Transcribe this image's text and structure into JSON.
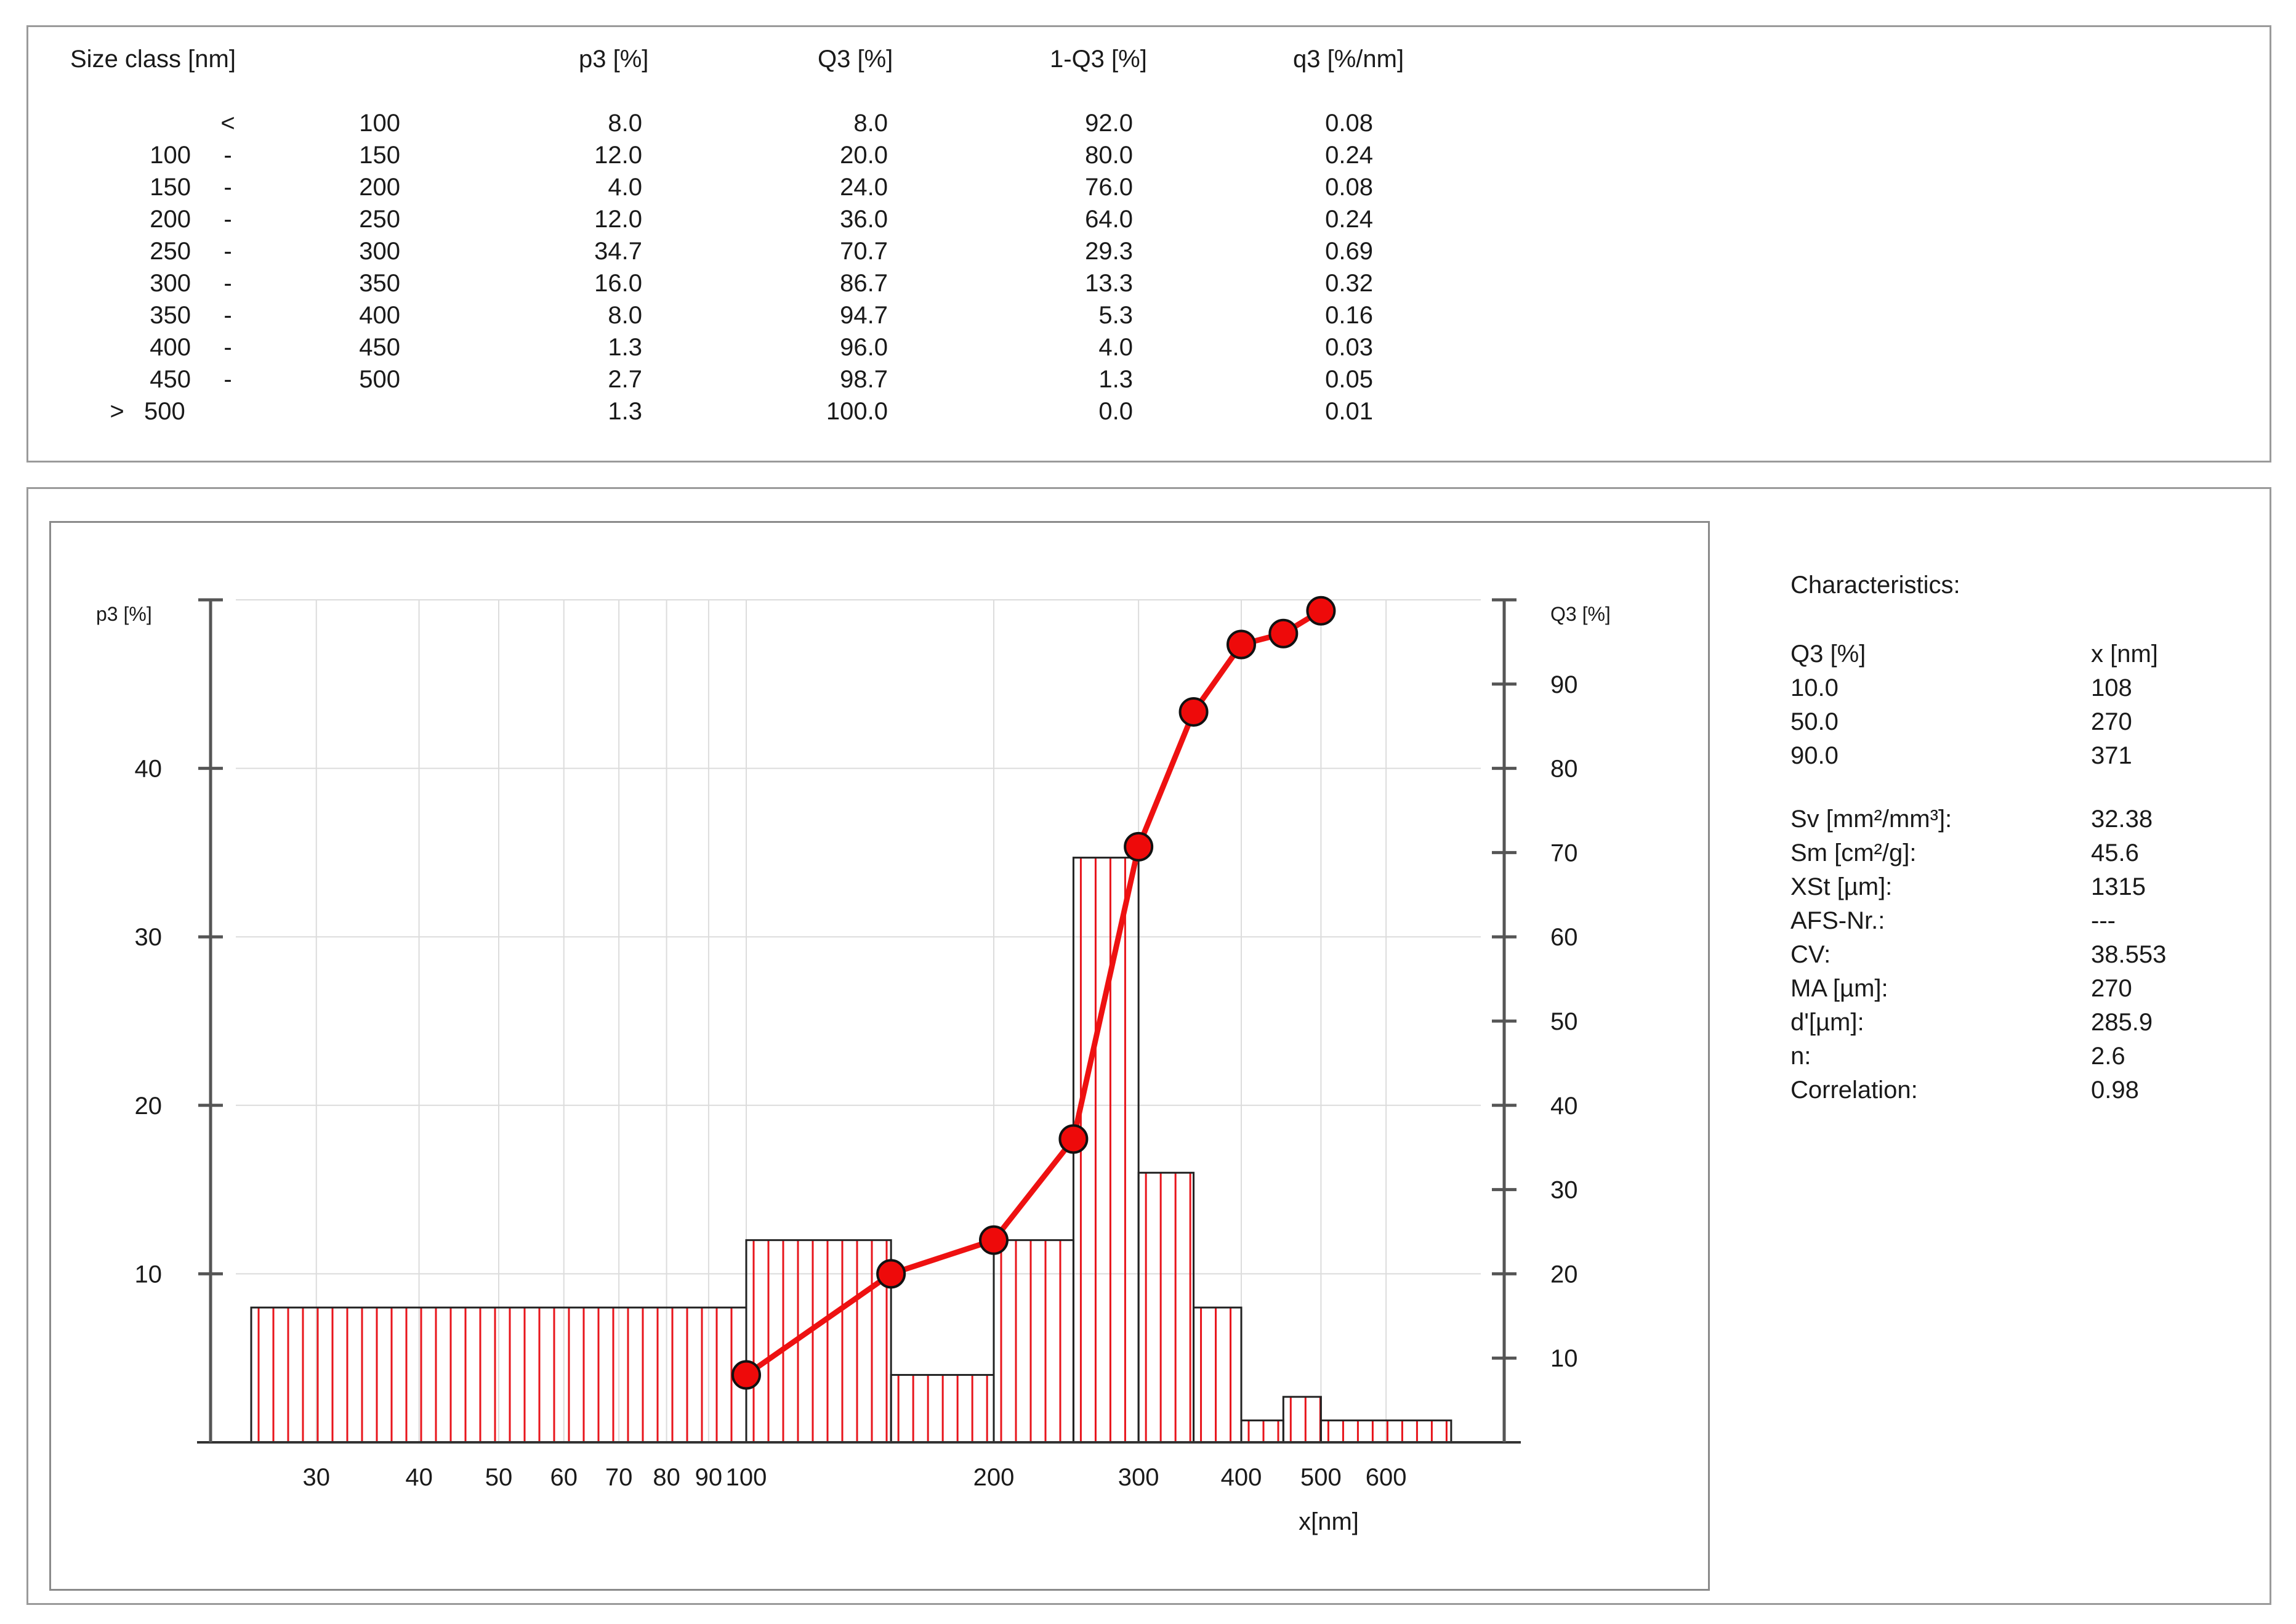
{
  "table": {
    "headers": [
      "Size class [nm]",
      "p3 [%]",
      "Q3 [%]",
      "1-Q3 [%]",
      "q3 [%/nm]"
    ],
    "rows": [
      {
        "low": "",
        "sep": "<",
        "high": "100",
        "p3": "8.0",
        "Q3": "8.0",
        "oneMinusQ3": "92.0",
        "q3": "0.08"
      },
      {
        "low": "100",
        "sep": "-",
        "high": "150",
        "p3": "12.0",
        "Q3": "20.0",
        "oneMinusQ3": "80.0",
        "q3": "0.24"
      },
      {
        "low": "150",
        "sep": "-",
        "high": "200",
        "p3": "4.0",
        "Q3": "24.0",
        "oneMinusQ3": "76.0",
        "q3": "0.08"
      },
      {
        "low": "200",
        "sep": "-",
        "high": "250",
        "p3": "12.0",
        "Q3": "36.0",
        "oneMinusQ3": "64.0",
        "q3": "0.24"
      },
      {
        "low": "250",
        "sep": "-",
        "high": "300",
        "p3": "34.7",
        "Q3": "70.7",
        "oneMinusQ3": "29.3",
        "q3": "0.69"
      },
      {
        "low": "300",
        "sep": "-",
        "high": "350",
        "p3": "16.0",
        "Q3": "86.7",
        "oneMinusQ3": "13.3",
        "q3": "0.32"
      },
      {
        "low": "350",
        "sep": "-",
        "high": "400",
        "p3": "8.0",
        "Q3": "94.7",
        "oneMinusQ3": "5.3",
        "q3": "0.16"
      },
      {
        "low": "400",
        "sep": "-",
        "high": "450",
        "p3": "1.3",
        "Q3": "96.0",
        "oneMinusQ3": "4.0",
        "q3": "0.03"
      },
      {
        "low": "450",
        "sep": "-",
        "high": "500",
        "p3": "2.7",
        "Q3": "98.7",
        "oneMinusQ3": "1.3",
        "q3": "0.05"
      },
      {
        "low": "500",
        "sep": ">",
        "high": "",
        "p3": "1.3",
        "Q3": "100.0",
        "oneMinusQ3": "0.0",
        "q3": "0.01"
      }
    ]
  },
  "characteristics": {
    "title": "Characteristics:",
    "col1_header": "Q3 [%]",
    "col2_header": "x [nm]",
    "quantiles": [
      {
        "q": "10.0",
        "x": "108"
      },
      {
        "q": "50.0",
        "x": "270"
      },
      {
        "q": "90.0",
        "x": "371"
      }
    ],
    "stats": [
      {
        "label": "Sv [mm²/mm³]:",
        "value": "32.38"
      },
      {
        "label": "Sm [cm²/g]:",
        "value": "45.6"
      },
      {
        "label": "XSt [µm]:",
        "value": "1315"
      },
      {
        "label": "AFS-Nr.:",
        "value": "---"
      },
      {
        "label": "CV:",
        "value": "38.553"
      },
      {
        "label": "MA [µm]:",
        "value": "270"
      },
      {
        "label": "d'[µm]:",
        "value": "285.9"
      },
      {
        "label": "n:",
        "value": "2.6"
      },
      {
        "label": "Correlation:",
        "value": "0.98"
      }
    ]
  },
  "chart_data": {
    "type": "bar",
    "xscale": "log",
    "xlabel": "x[nm]",
    "ylabel_left": "p3 [%]",
    "ylabel_right": "Q3 [%]",
    "ylim_left": [
      0,
      50
    ],
    "ylim_right": [
      0,
      100
    ],
    "x_ticks": [
      30,
      40,
      50,
      60,
      70,
      80,
      90,
      100,
      200,
      300,
      400,
      500,
      600
    ],
    "left_ticks": [
      10,
      20,
      30,
      40
    ],
    "right_ticks": [
      10,
      20,
      30,
      40,
      50,
      60,
      70,
      80,
      90
    ],
    "grid": true,
    "colors": {
      "bar_fill": "#e8141b",
      "line": "#ee1111",
      "marker": "#ee0a0a"
    },
    "histogram": [
      {
        "x_from": 25,
        "x_to": 100,
        "p3": 8.0
      },
      {
        "x_from": 100,
        "x_to": 150,
        "p3": 12.0
      },
      {
        "x_from": 150,
        "x_to": 200,
        "p3": 4.0
      },
      {
        "x_from": 200,
        "x_to": 250,
        "p3": 12.0
      },
      {
        "x_from": 250,
        "x_to": 300,
        "p3": 34.7
      },
      {
        "x_from": 300,
        "x_to": 350,
        "p3": 16.0
      },
      {
        "x_from": 350,
        "x_to": 400,
        "p3": 8.0
      },
      {
        "x_from": 400,
        "x_to": 450,
        "p3": 1.3
      },
      {
        "x_from": 450,
        "x_to": 500,
        "p3": 2.7
      },
      {
        "x_from": 500,
        "x_to": 720,
        "p3": 1.3
      }
    ],
    "cumulative": {
      "name": "Q3",
      "x": [
        100,
        150,
        200,
        250,
        300,
        350,
        400,
        450,
        500
      ],
      "y": [
        8.0,
        20.0,
        24.0,
        36.0,
        70.7,
        86.7,
        94.7,
        96.0,
        98.7
      ]
    }
  }
}
